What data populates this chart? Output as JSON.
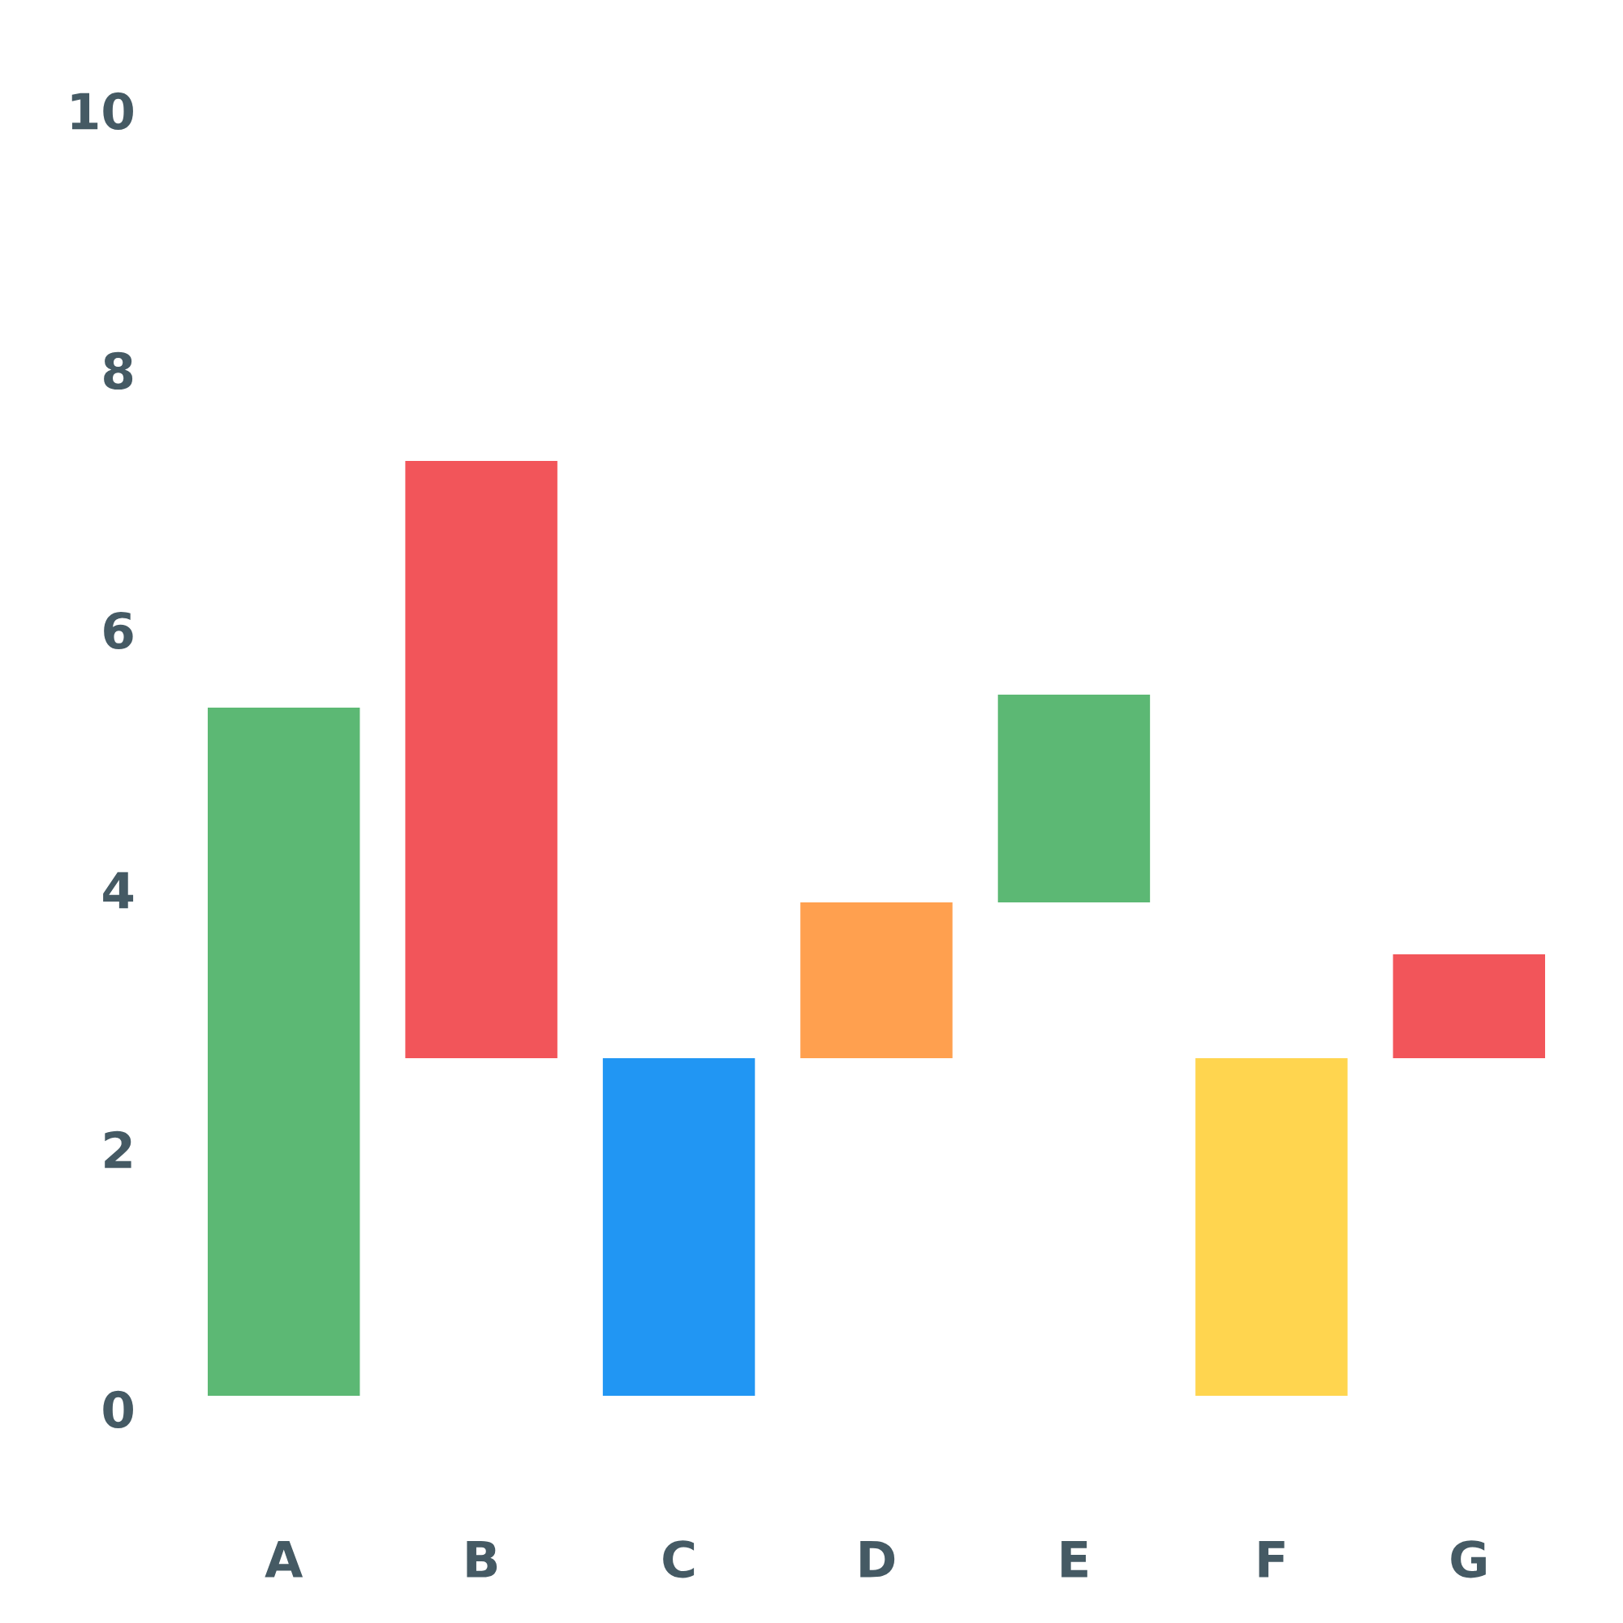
{
  "chart_data": {
    "type": "bar",
    "categories": [
      "A",
      "B",
      "C",
      "D",
      "E",
      "F",
      "G"
    ],
    "values": [
      5.3,
      4.6,
      2.6,
      1.2,
      1.6,
      2.6,
      0.8
    ],
    "base": [
      0.1,
      2.7,
      0.1,
      2.7,
      3.9,
      0.1,
      2.7
    ],
    "colors": [
      "#5cb874",
      "#f2555a",
      "#2196f3",
      "#ffa04f",
      "#5cb874",
      "#ffd54f",
      "#f2555a"
    ],
    "ylim": [
      0,
      10
    ],
    "yticks": [
      0,
      2,
      4,
      6,
      8,
      10
    ],
    "grid": false
  }
}
